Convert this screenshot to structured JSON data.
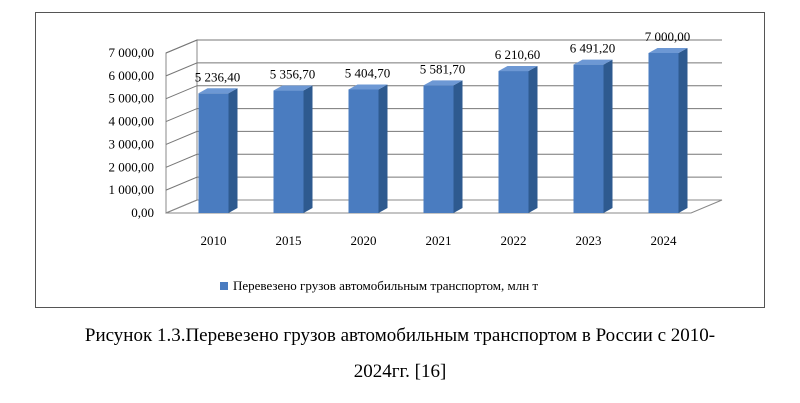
{
  "chart_data": {
    "type": "bar",
    "categories": [
      "2010",
      "2015",
      "2020",
      "2021",
      "2022",
      "2023",
      "2024"
    ],
    "series": [
      {
        "name": "Перевезено грузов автомобильным транспортом, млн т",
        "values": [
          5236.4,
          5356.7,
          5404.7,
          5581.7,
          6210.6,
          6491.2,
          7000.0
        ],
        "labels": [
          "5 236,40",
          "5 356,70",
          "5 404,70",
          "5 581,70",
          "6 210,60",
          "6 491,20",
          "7 000,00"
        ]
      }
    ],
    "ylim": [
      0,
      7000
    ],
    "yticks": [
      0,
      1000,
      2000,
      3000,
      4000,
      5000,
      6000,
      7000
    ],
    "ytick_labels": [
      "0,00",
      "1 000,00",
      "2 000,00",
      "3 000,00",
      "4 000,00",
      "5 000,00",
      "6 000,00",
      "7 000,00"
    ],
    "grid": true,
    "three_d": true,
    "legend_position": "bottom",
    "bar_color": "#4a7cc0"
  },
  "caption": {
    "line1": "Рисунок 1.3.Перевезено грузов автомобильным транспортом в России с 2010-",
    "line2": "2024гг. [16]"
  }
}
